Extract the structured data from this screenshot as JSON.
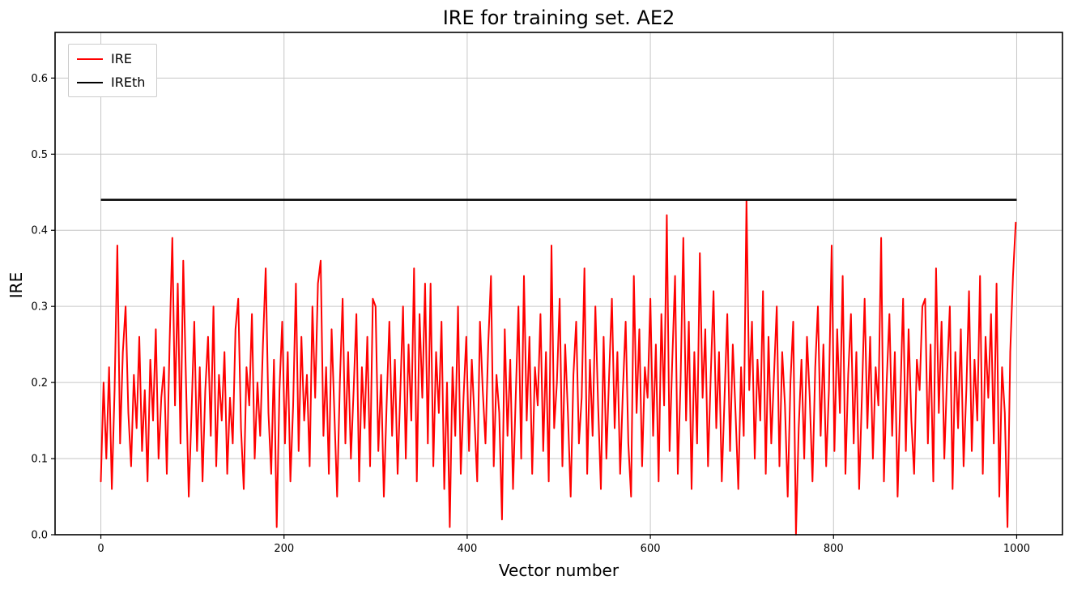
{
  "chart_data": {
    "type": "line",
    "title": "IRE for training set. AE2",
    "xlabel": "Vector number",
    "ylabel": "IRE",
    "xlim": [
      -50,
      1050
    ],
    "ylim": [
      0,
      0.66
    ],
    "xticks": [
      0,
      200,
      400,
      600,
      800,
      1000
    ],
    "yticks": [
      0.0,
      0.1,
      0.2,
      0.3,
      0.4,
      0.5,
      0.6
    ],
    "grid": true,
    "grid_color": "#c6c6c6",
    "legend_position": "upper left",
    "series": [
      {
        "name": "IRE",
        "color": "#ff0000",
        "x_start": 0,
        "x_step": 3,
        "values": [
          0.07,
          0.2,
          0.1,
          0.22,
          0.06,
          0.19,
          0.38,
          0.12,
          0.24,
          0.3,
          0.16,
          0.09,
          0.21,
          0.14,
          0.26,
          0.11,
          0.19,
          0.07,
          0.23,
          0.15,
          0.27,
          0.1,
          0.18,
          0.22,
          0.08,
          0.25,
          0.39,
          0.17,
          0.33,
          0.12,
          0.36,
          0.2,
          0.05,
          0.16,
          0.28,
          0.11,
          0.22,
          0.07,
          0.19,
          0.26,
          0.13,
          0.3,
          0.09,
          0.21,
          0.15,
          0.24,
          0.08,
          0.18,
          0.12,
          0.27,
          0.31,
          0.14,
          0.06,
          0.22,
          0.17,
          0.29,
          0.1,
          0.2,
          0.13,
          0.25,
          0.35,
          0.16,
          0.08,
          0.23,
          0.01,
          0.19,
          0.28,
          0.12,
          0.24,
          0.07,
          0.17,
          0.33,
          0.11,
          0.26,
          0.15,
          0.21,
          0.09,
          0.3,
          0.18,
          0.33,
          0.36,
          0.13,
          0.22,
          0.08,
          0.27,
          0.16,
          0.05,
          0.2,
          0.31,
          0.12,
          0.24,
          0.1,
          0.19,
          0.29,
          0.07,
          0.22,
          0.14,
          0.26,
          0.09,
          0.31,
          0.3,
          0.11,
          0.21,
          0.05,
          0.17,
          0.28,
          0.13,
          0.23,
          0.08,
          0.19,
          0.3,
          0.1,
          0.25,
          0.15,
          0.35,
          0.07,
          0.29,
          0.18,
          0.33,
          0.12,
          0.33,
          0.09,
          0.24,
          0.16,
          0.28,
          0.06,
          0.2,
          0.01,
          0.22,
          0.13,
          0.3,
          0.08,
          0.18,
          0.26,
          0.11,
          0.23,
          0.15,
          0.07,
          0.28,
          0.19,
          0.12,
          0.25,
          0.34,
          0.09,
          0.21,
          0.16,
          0.02,
          0.27,
          0.13,
          0.23,
          0.06,
          0.18,
          0.3,
          0.1,
          0.34,
          0.15,
          0.26,
          0.08,
          0.22,
          0.17,
          0.29,
          0.11,
          0.24,
          0.07,
          0.38,
          0.14,
          0.2,
          0.31,
          0.09,
          0.25,
          0.16,
          0.05,
          0.21,
          0.28,
          0.12,
          0.18,
          0.35,
          0.08,
          0.23,
          0.13,
          0.3,
          0.17,
          0.06,
          0.26,
          0.1,
          0.21,
          0.31,
          0.14,
          0.24,
          0.08,
          0.19,
          0.28,
          0.12,
          0.05,
          0.34,
          0.16,
          0.27,
          0.09,
          0.22,
          0.18,
          0.31,
          0.13,
          0.25,
          0.07,
          0.29,
          0.17,
          0.42,
          0.11,
          0.23,
          0.34,
          0.08,
          0.2,
          0.39,
          0.15,
          0.28,
          0.06,
          0.24,
          0.12,
          0.37,
          0.18,
          0.27,
          0.09,
          0.21,
          0.32,
          0.14,
          0.24,
          0.07,
          0.18,
          0.29,
          0.11,
          0.25,
          0.16,
          0.06,
          0.22,
          0.13,
          0.44,
          0.19,
          0.28,
          0.1,
          0.23,
          0.15,
          0.32,
          0.08,
          0.26,
          0.12,
          0.21,
          0.3,
          0.09,
          0.24,
          0.17,
          0.05,
          0.2,
          0.28,
          0.0,
          0.14,
          0.23,
          0.1,
          0.26,
          0.18,
          0.07,
          0.22,
          0.3,
          0.13,
          0.25,
          0.09,
          0.19,
          0.38,
          0.11,
          0.27,
          0.16,
          0.34,
          0.08,
          0.21,
          0.29,
          0.12,
          0.24,
          0.06,
          0.18,
          0.31,
          0.14,
          0.26,
          0.1,
          0.22,
          0.17,
          0.39,
          0.07,
          0.2,
          0.29,
          0.13,
          0.24,
          0.05,
          0.18,
          0.31,
          0.11,
          0.27,
          0.15,
          0.08,
          0.23,
          0.19,
          0.3,
          0.31,
          0.12,
          0.25,
          0.07,
          0.35,
          0.16,
          0.28,
          0.1,
          0.21,
          0.3,
          0.06,
          0.24,
          0.14,
          0.27,
          0.09,
          0.19,
          0.32,
          0.11,
          0.23,
          0.15,
          0.34,
          0.08,
          0.26,
          0.18,
          0.29,
          0.12,
          0.33,
          0.05,
          0.22,
          0.16,
          0.01,
          0.24,
          0.34,
          0.41
        ]
      },
      {
        "name": "IREth",
        "color": "#000000",
        "type": "hline",
        "y": 0.44,
        "x_range": [
          0,
          1000
        ]
      }
    ]
  }
}
